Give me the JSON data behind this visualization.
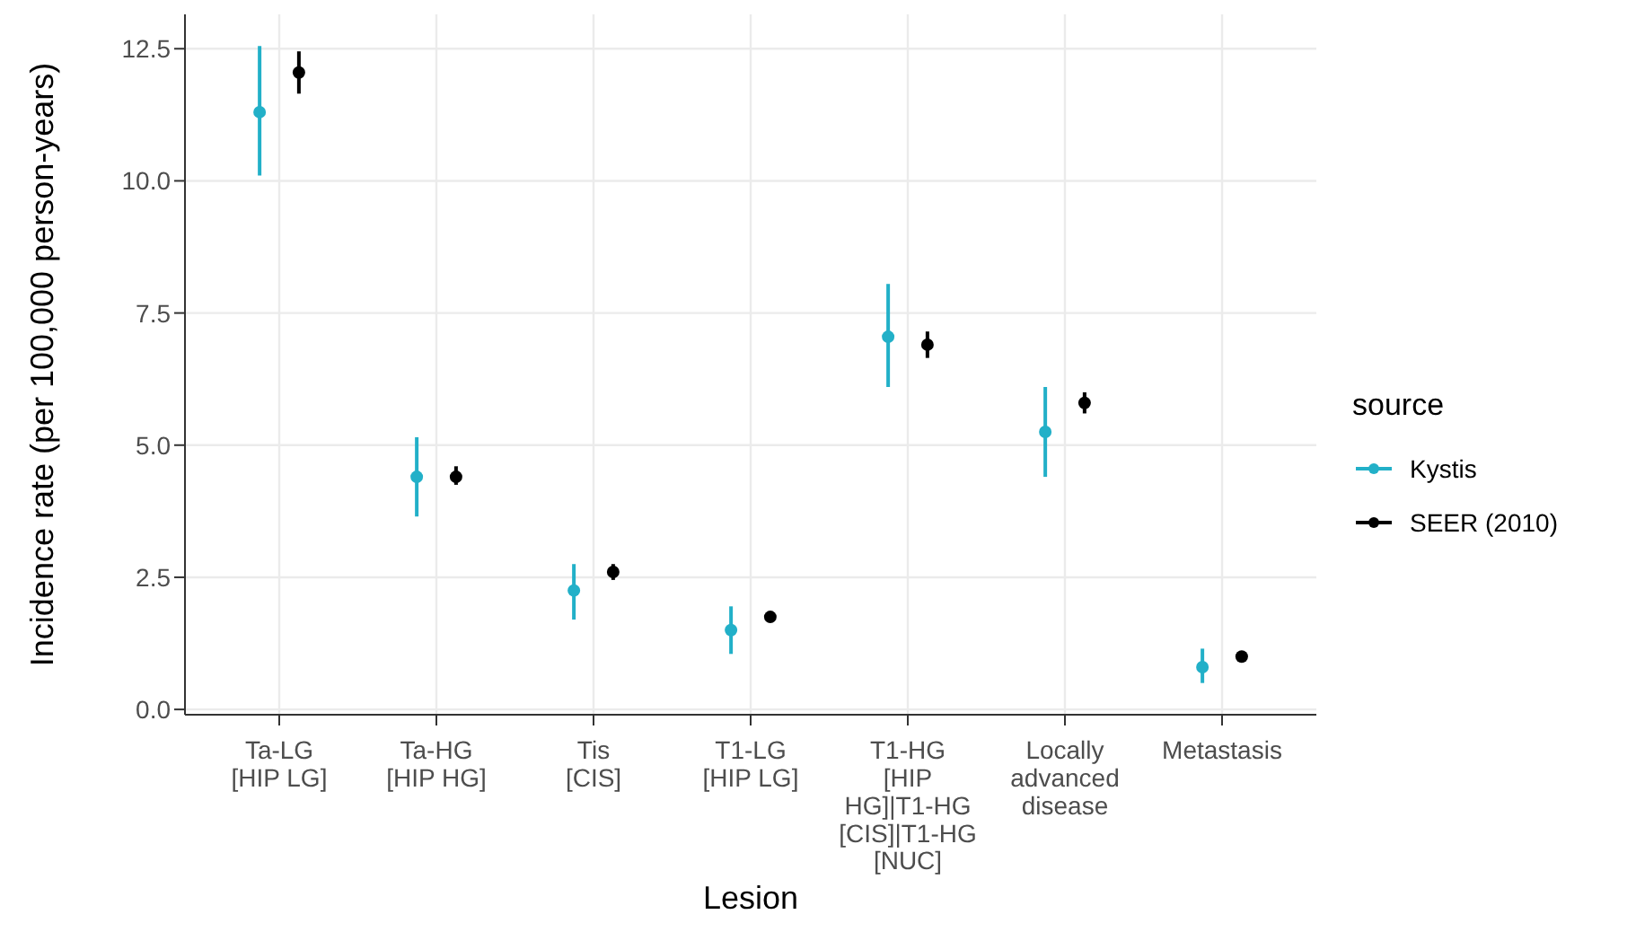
{
  "chart_data": {
    "type": "scatter",
    "xlabel": "Lesion",
    "ylabel": "Incidence rate (per 100,000 person-years)",
    "legend_title": "source",
    "categories": [
      "Ta-LG\n[HIP LG]",
      "Ta-HG\n[HIP HG]",
      "Tis\n[CIS]",
      "T1-LG\n[HIP LG]",
      "T1-HG\n[HIP\nHG]|T1-HG\n[CIS]|T1-HG\n[NUC]",
      "Locally\nadvanced\ndisease",
      "Metastasis"
    ],
    "series": [
      {
        "name": "Kystis",
        "color": "#22b0c8",
        "values": [
          11.3,
          4.4,
          2.25,
          1.5,
          7.05,
          5.25,
          0.8
        ],
        "errors": [
          [
            10.1,
            12.55
          ],
          [
            3.65,
            5.15
          ],
          [
            1.7,
            2.75
          ],
          [
            1.05,
            1.95
          ],
          [
            6.1,
            8.05
          ],
          [
            4.4,
            6.1
          ],
          [
            0.5,
            1.15
          ]
        ]
      },
      {
        "name": "SEER (2010)",
        "color": "#000000",
        "values": [
          12.05,
          4.4,
          2.6,
          1.75,
          6.9,
          5.8,
          1.0
        ],
        "errors": [
          [
            11.65,
            12.45
          ],
          [
            4.25,
            4.6
          ],
          [
            2.45,
            2.75
          ],
          [
            1.65,
            1.85
          ],
          [
            6.65,
            7.15
          ],
          [
            5.6,
            6.0
          ],
          [
            0.95,
            1.05
          ]
        ]
      }
    ],
    "ylim": [
      -0.1,
      13.15
    ],
    "yticks": [
      {
        "value": 0,
        "label": "0.0"
      },
      {
        "value": 2.5,
        "label": "2.5"
      },
      {
        "value": 5,
        "label": "5.0"
      },
      {
        "value": 7.5,
        "label": "7.5"
      },
      {
        "value": 10,
        "label": "10.0"
      },
      {
        "value": 12.5,
        "label": "12.5"
      }
    ],
    "grid": true,
    "legend": "right",
    "marker": "circle"
  }
}
